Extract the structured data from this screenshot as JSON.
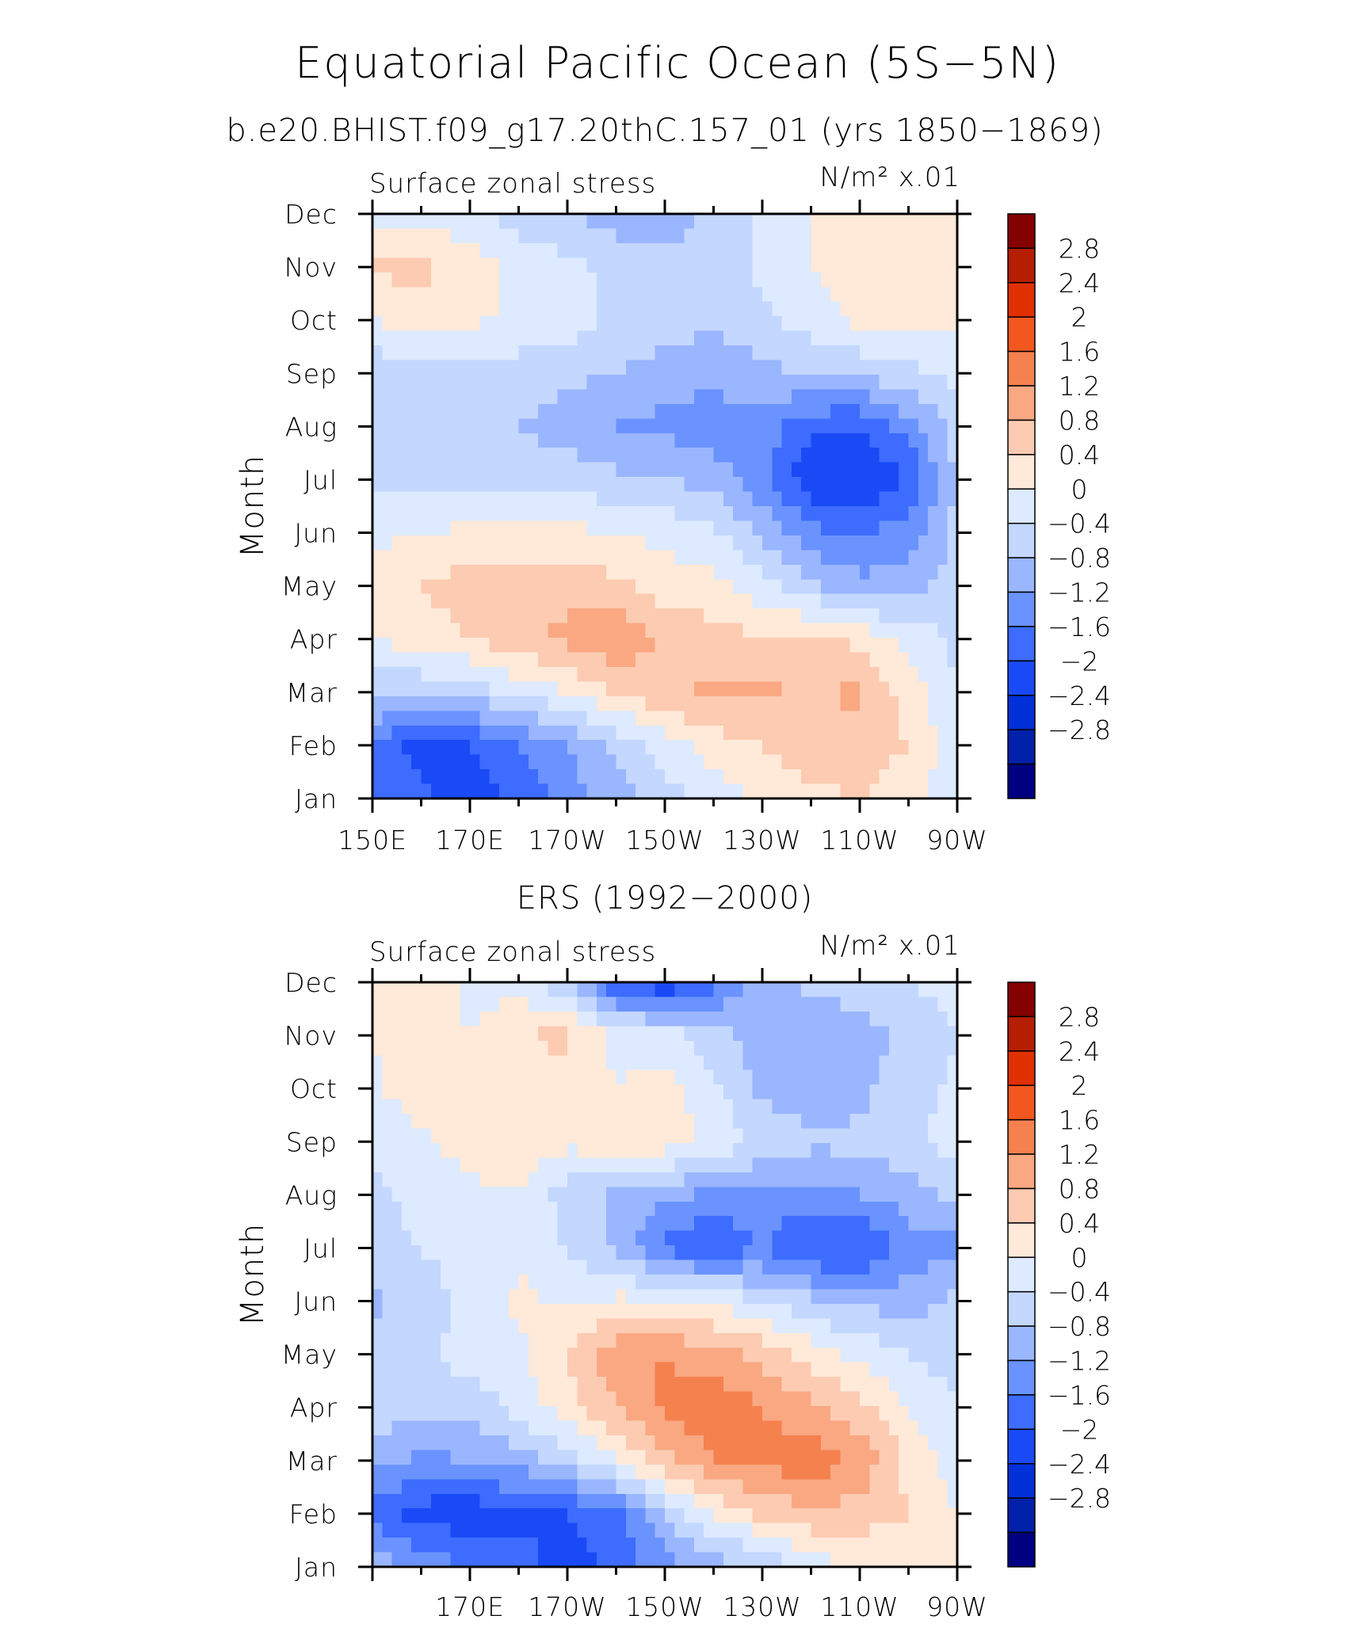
{
  "figure": {
    "title": "Equatorial Pacific Ocean (5S−5N)"
  },
  "colorbar": {
    "levels": [
      -2.8,
      -2.4,
      -2,
      -1.6,
      -1.2,
      -0.8,
      -0.4,
      0,
      0.4,
      0.8,
      1.2,
      1.6,
      2,
      2.4,
      2.8
    ],
    "labels": [
      "2.8",
      "2.4",
      "2",
      "1.6",
      "1.2",
      "0.8",
      "0.4",
      "0",
      "−0.4",
      "−0.8",
      "−1.2",
      "−1.6",
      "−2",
      "−2.4",
      "−2.8"
    ],
    "colors": [
      "#000080",
      "#0020aa",
      "#0030d8",
      "#1a4af5",
      "#3d6cff",
      "#6a93ff",
      "#9ab6ff",
      "#c3d7ff",
      "#ddeaff",
      "#ffe9d8",
      "#fccbb2",
      "#f9a882",
      "#f5814f",
      "#f2571f",
      "#e03000",
      "#b51f00",
      "#850000"
    ]
  },
  "chart_data": [
    {
      "type": "heatmap",
      "title": "b.e20.BHIST.f09_g17.20thC.157_01 (yrs 1850−1869)",
      "left_label": "Surface zonal stress",
      "right_label": "N/m² x.01",
      "ylabel": "Month",
      "y_categories": [
        "Jan",
        "Feb",
        "Mar",
        "Apr",
        "May",
        "Jun",
        "Jul",
        "Aug",
        "Sep",
        "Oct",
        "Nov",
        "Dec"
      ],
      "x_tick_labels": [
        "150E",
        "170E",
        "170W",
        "150W",
        "130W",
        "110W",
        "90W"
      ],
      "x_tick_values": [
        150,
        170,
        190,
        210,
        230,
        250,
        270
      ],
      "xlim": [
        150,
        270
      ],
      "ylim": [
        1,
        12
      ],
      "contour_levels": [
        -2.8,
        -2.4,
        -2,
        -1.6,
        -1.2,
        -0.8,
        -0.4,
        0,
        0.4,
        0.8,
        1.2,
        1.6,
        2,
        2.4,
        2.8
      ],
      "x": [
        150,
        160,
        170,
        180,
        190,
        200,
        210,
        220,
        230,
        240,
        250,
        260,
        270
      ],
      "y": [
        1,
        2,
        3,
        4,
        5,
        6,
        7,
        8,
        9,
        10,
        11,
        12
      ],
      "z": [
        [
          -1.4,
          -1.5,
          -1.8,
          -1.5,
          -1.0,
          -0.6,
          -0.2,
          0.2,
          0.5,
          0.7,
          0.8,
          0.5,
          0.1
        ],
        [
          -1.2,
          -1.8,
          -1.6,
          -1.2,
          -0.8,
          -0.3,
          0.2,
          0.6,
          0.8,
          1.0,
          1.1,
          0.8,
          0.1
        ],
        [
          -0.3,
          -0.3,
          -0.2,
          0.1,
          0.4,
          0.8,
          1.1,
          1.3,
          1.3,
          1.1,
          1.3,
          0.6,
          0.0
        ],
        [
          0.4,
          0.6,
          0.8,
          1.1,
          1.3,
          1.6,
          1.1,
          1.0,
          0.8,
          0.9,
          0.7,
          0.3,
          -0.1
        ],
        [
          0.6,
          0.8,
          1.0,
          1.0,
          1.1,
          0.9,
          0.6,
          0.5,
          0.2,
          -0.3,
          -0.7,
          -0.6,
          -0.2
        ],
        [
          0.3,
          0.4,
          0.5,
          0.6,
          0.5,
          0.4,
          0.3,
          0.1,
          -0.5,
          -1.1,
          -1.2,
          -1.0,
          -0.3
        ],
        [
          -0.1,
          -0.2,
          -0.2,
          -0.1,
          -0.2,
          -0.3,
          -0.4,
          -0.6,
          -1.1,
          -1.9,
          -2.0,
          -1.6,
          -0.3
        ],
        [
          -0.2,
          -0.2,
          -0.3,
          -0.4,
          -0.6,
          -0.8,
          -0.9,
          -1.0,
          -1.0,
          -1.5,
          -1.6,
          -1.0,
          -0.2
        ],
        [
          -0.3,
          -0.2,
          -0.2,
          -0.2,
          -0.3,
          -0.4,
          -0.6,
          -0.7,
          -0.5,
          -0.4,
          -0.3,
          -0.1,
          0.1
        ],
        [
          0.4,
          0.6,
          0.5,
          0.3,
          0.2,
          -0.1,
          -0.2,
          -0.3,
          -0.1,
          0.2,
          0.5,
          0.6,
          0.5
        ],
        [
          0.9,
          0.9,
          0.6,
          0.3,
          0.1,
          -0.1,
          -0.3,
          -0.3,
          0.1,
          0.4,
          0.6,
          0.6,
          0.6
        ],
        [
          0.3,
          0.3,
          0.1,
          -0.2,
          -0.4,
          -0.6,
          -0.6,
          -0.3,
          0.1,
          0.4,
          0.5,
          0.5,
          0.5
        ]
      ]
    },
    {
      "type": "heatmap",
      "title": "ERS (1992−2000)",
      "left_label": "Surface zonal stress",
      "right_label": "N/m² x.01",
      "ylabel": "Month",
      "y_categories": [
        "Jan",
        "Feb",
        "Mar",
        "Apr",
        "May",
        "Jun",
        "Jul",
        "Aug",
        "Sep",
        "Oct",
        "Nov",
        "Dec"
      ],
      "x_tick_labels": [
        "170E",
        "170W",
        "150W",
        "130W",
        "110W",
        "90W"
      ],
      "x_tick_values": [
        170,
        190,
        210,
        230,
        250,
        270
      ],
      "xlim": [
        150,
        270
      ],
      "ylim": [
        1,
        12
      ],
      "contour_levels": [
        -2.8,
        -2.4,
        -2,
        -1.6,
        -1.2,
        -0.8,
        -0.4,
        0,
        0.4,
        0.8,
        1.2,
        1.6,
        2,
        2.4,
        2.8
      ],
      "x": [
        150,
        160,
        170,
        180,
        190,
        200,
        210,
        220,
        230,
        240,
        250,
        260,
        270
      ],
      "y": [
        1,
        2,
        3,
        4,
        5,
        6,
        7,
        8,
        9,
        10,
        11,
        12
      ],
      "z": [
        [
          -0.6,
          -0.9,
          -1.2,
          -1.4,
          -1.8,
          -1.5,
          -1.0,
          -0.6,
          -0.4,
          0.2,
          0.4,
          0.6,
          0.5
        ],
        [
          -1.3,
          -1.8,
          -1.9,
          -1.7,
          -1.6,
          -1.3,
          -0.4,
          0.5,
          0.9,
          1.1,
          1.0,
          0.8,
          0.4
        ],
        [
          -0.7,
          -0.9,
          -0.8,
          -0.6,
          -0.2,
          0.4,
          1.1,
          1.6,
          1.7,
          1.9,
          1.5,
          0.7,
          0.2
        ],
        [
          -0.2,
          -0.1,
          -0.3,
          0.2,
          0.6,
          1.2,
          1.7,
          1.9,
          1.6,
          1.3,
          0.9,
          0.4,
          0.0
        ],
        [
          -0.2,
          -0.1,
          0.2,
          0.3,
          0.8,
          1.5,
          1.6,
          1.3,
          1.1,
          0.6,
          0.3,
          0.0,
          -0.2
        ],
        [
          -0.5,
          -0.2,
          0.1,
          0.5,
          0.3,
          0.5,
          0.5,
          0.4,
          0.0,
          -0.3,
          -0.5,
          -0.6,
          -0.3
        ],
        [
          -0.1,
          0.0,
          0.2,
          0.3,
          0.0,
          -0.5,
          -1.3,
          -1.6,
          -1.2,
          -1.7,
          -1.7,
          -1.0,
          -0.9
        ],
        [
          -0.1,
          0.1,
          0.3,
          0.4,
          -0.2,
          -0.5,
          -0.7,
          -0.9,
          -0.9,
          -1.0,
          -0.8,
          -0.6,
          -0.3
        ],
        [
          0.1,
          0.3,
          0.6,
          0.7,
          0.5,
          0.7,
          0.6,
          0.3,
          -0.1,
          -0.3,
          -0.3,
          -0.1,
          0.2
        ],
        [
          0.3,
          0.7,
          0.4,
          0.6,
          0.6,
          0.4,
          0.6,
          0.1,
          -0.5,
          -0.7,
          -0.5,
          -0.2,
          0.1
        ],
        [
          0.4,
          0.6,
          0.4,
          0.8,
          0.9,
          0.3,
          0.2,
          -0.2,
          -0.7,
          -0.8,
          -0.6,
          -0.3,
          0.0
        ],
        [
          0.5,
          0.8,
          0.3,
          0.2,
          -0.4,
          -1.6,
          -2.0,
          -1.3,
          -0.6,
          -0.3,
          -0.1,
          0.0,
          0.2
        ]
      ]
    }
  ]
}
